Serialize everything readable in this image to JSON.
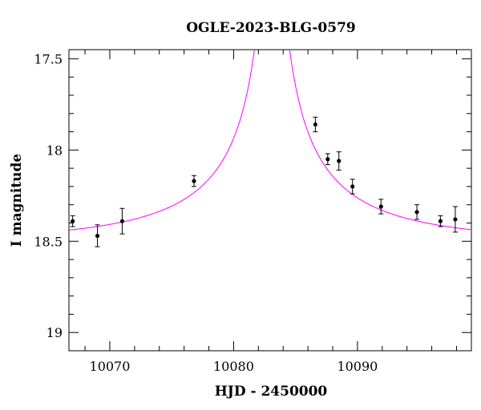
{
  "chart_data": {
    "type": "scatter",
    "title": "OGLE-2023-BLG-0579",
    "xlabel": "HJD - 2450000",
    "ylabel": "I magnitude",
    "xlim": [
      10066.7,
      10099.2
    ],
    "ylim": [
      19.1,
      17.45
    ],
    "y_inverted": true,
    "x_ticks": [
      10070,
      10080,
      10090
    ],
    "x_tick_labels": [
      "10070",
      "10080",
      "10090"
    ],
    "y_ticks": [
      17.5,
      18,
      18.5,
      19
    ],
    "y_tick_labels": [
      "17.5",
      "18",
      "18.5",
      "19"
    ],
    "grid": false,
    "series": [
      {
        "kind": "points_with_errorbars",
        "color": "#000000",
        "points": [
          {
            "x": 10067.0,
            "y": 18.39,
            "err": 0.03
          },
          {
            "x": 10069.0,
            "y": 18.47,
            "err": 0.06
          },
          {
            "x": 10071.0,
            "y": 18.39,
            "err": 0.07
          },
          {
            "x": 10076.8,
            "y": 18.17,
            "err": 0.03
          },
          {
            "x": 10086.6,
            "y": 17.86,
            "err": 0.04
          },
          {
            "x": 10087.6,
            "y": 18.05,
            "err": 0.03
          },
          {
            "x": 10088.5,
            "y": 18.06,
            "err": 0.05
          },
          {
            "x": 10089.6,
            "y": 18.2,
            "err": 0.04
          },
          {
            "x": 10091.9,
            "y": 18.31,
            "err": 0.04
          },
          {
            "x": 10094.8,
            "y": 18.34,
            "err": 0.04
          },
          {
            "x": 10096.7,
            "y": 18.39,
            "err": 0.03
          },
          {
            "x": 10097.9,
            "y": 18.38,
            "err": 0.07
          }
        ]
      },
      {
        "kind": "model_curve",
        "color": "#ff00ff",
        "model": {
          "t0": 10083.1,
          "tE": 18.0,
          "u0": 0.0053,
          "I_base": 18.5,
          "fs": 0.14
        }
      }
    ]
  }
}
